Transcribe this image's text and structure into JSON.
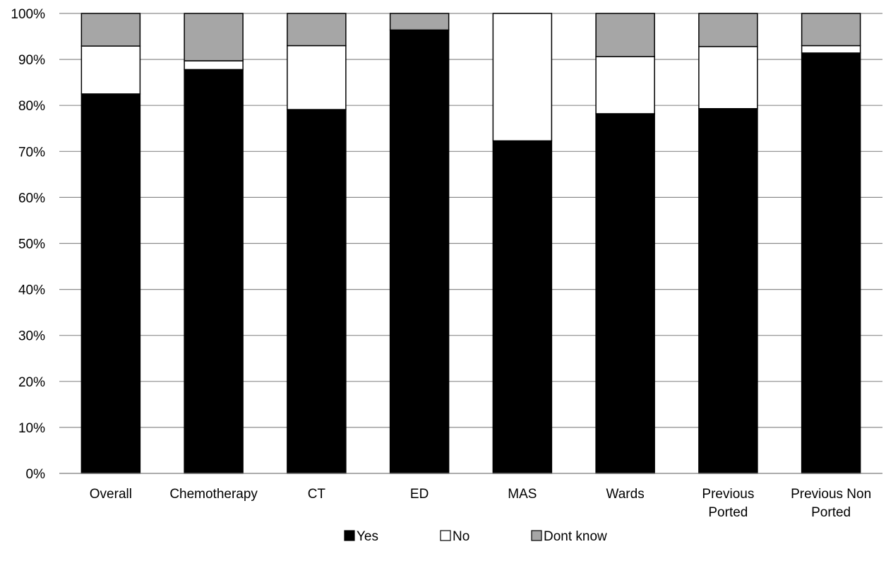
{
  "chart_data": {
    "type": "bar",
    "stacked": "percent",
    "categories": [
      [
        "Overall"
      ],
      [
        "Chemotherapy"
      ],
      [
        "CT"
      ],
      [
        "ED"
      ],
      [
        "MAS"
      ],
      [
        "Wards"
      ],
      [
        "Previous",
        "Ported"
      ],
      [
        "Previous Non",
        "Ported"
      ]
    ],
    "series": [
      {
        "name": "Yes",
        "color": "#000000",
        "values": [
          82.5,
          87.8,
          79.1,
          96.4,
          72.3,
          78.2,
          79.3,
          91.4
        ]
      },
      {
        "name": "No",
        "color": "#ffffff",
        "values": [
          10.4,
          1.9,
          13.9,
          0.0,
          27.7,
          12.4,
          13.5,
          1.6
        ]
      },
      {
        "name": "Dont know",
        "color": "#a6a6a6",
        "values": [
          7.1,
          10.3,
          7.0,
          3.6,
          0.0,
          9.4,
          7.2,
          7.0
        ]
      }
    ],
    "yticks": [
      "0%",
      "10%",
      "20%",
      "30%",
      "40%",
      "50%",
      "60%",
      "70%",
      "80%",
      "90%",
      "100%"
    ],
    "ylim": [
      0,
      100
    ],
    "grid": true,
    "legend": "bottom"
  }
}
